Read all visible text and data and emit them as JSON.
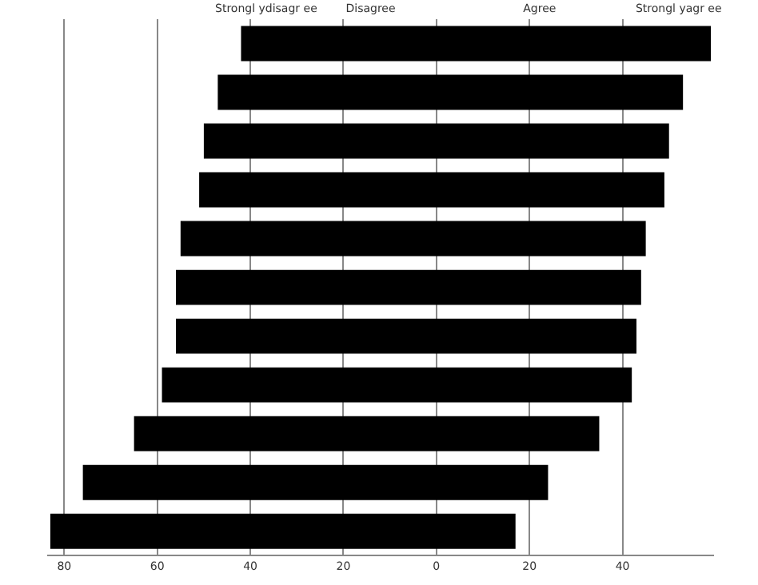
{
  "chart_data": {
    "type": "bar",
    "orientation": "horizontal",
    "categories": [
      null,
      null,
      null,
      null,
      null,
      null,
      null,
      null,
      null,
      null,
      null
    ],
    "base": [
      -42,
      -47,
      -50,
      -51,
      -55,
      -56,
      -56,
      -59,
      -65,
      -76,
      -83
    ],
    "values": [
      101,
      100,
      100,
      100,
      100,
      100,
      99,
      101,
      100,
      100,
      100
    ],
    "color": "#000000",
    "xlim": [
      -83.5,
      59.5
    ],
    "xticks": [
      {
        "value": -80,
        "label": "80"
      },
      {
        "value": -60,
        "label": "60"
      },
      {
        "value": -40,
        "label": "40"
      },
      {
        "value": -20,
        "label": "20"
      },
      0,
      {
        "value": 20,
        "label": "20"
      },
      40
    ],
    "annotations": [
      "Strongl ydisagr ee",
      "Disagree",
      "Agree",
      "Strongl yagr ee"
    ],
    "grid": "x",
    "legend": false
  }
}
